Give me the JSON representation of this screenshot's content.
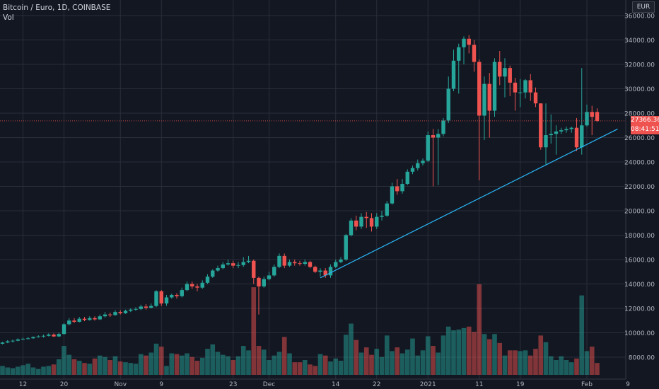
{
  "header": {
    "title": "Bitcoin / Euro, 1D, COINBASE",
    "volume_label": "Vol"
  },
  "price_axis": {
    "currency": "EUR",
    "last_price": "27366.36",
    "countdown": "08:41:51",
    "ticks": [
      "36000.00",
      "34000.00",
      "32000.00",
      "30000.00",
      "28000.00",
      "26000.00",
      "24000.00",
      "22000.00",
      "20000.00",
      "18000.00",
      "16000.00",
      "14000.00",
      "12000.00",
      "10000.00",
      "8000.00"
    ]
  },
  "colors": {
    "up": "#26a69a",
    "down": "#ef5350",
    "trendline": "#29b6f6",
    "grid": "#2a2e39",
    "background": "#131722"
  },
  "chart_data": {
    "type": "candlestick",
    "title": "Bitcoin / Euro, 1D, COINBASE",
    "ylim": [
      7000,
      36500
    ],
    "x_tick_labels": [
      {
        "label": "12",
        "index": 4
      },
      {
        "label": "20",
        "index": 12
      },
      {
        "label": "Nov",
        "index": 23
      },
      {
        "label": "9",
        "index": 31
      },
      {
        "label": "23",
        "index": 45
      },
      {
        "label": "Dec",
        "index": 52
      },
      {
        "label": "14",
        "index": 65
      },
      {
        "label": "22",
        "index": 73
      },
      {
        "label": "2021",
        "index": 83
      },
      {
        "label": "11",
        "index": 93
      },
      {
        "label": "19",
        "index": 101
      },
      {
        "label": "Feb",
        "index": 114
      },
      {
        "label": "9",
        "index": 122
      }
    ],
    "trendline": {
      "start": {
        "index": 62,
        "value": 14500
      },
      "end": {
        "index": 120,
        "value": 26700
      }
    },
    "candles": [
      [
        9100,
        9200,
        9050,
        9250,
        1200
      ],
      [
        9200,
        9300,
        9150,
        9400,
        1000
      ],
      [
        9300,
        9350,
        9200,
        9450,
        900
      ],
      [
        9350,
        9450,
        9300,
        9550,
        1100
      ],
      [
        9450,
        9500,
        9400,
        9600,
        1300
      ],
      [
        9500,
        9550,
        9450,
        9650,
        1500
      ],
      [
        9550,
        9650,
        9500,
        9700,
        1000
      ],
      [
        9650,
        9700,
        9600,
        9800,
        800
      ],
      [
        9700,
        9750,
        9600,
        9850,
        1100
      ],
      [
        9750,
        9850,
        9700,
        9950,
        1200
      ],
      [
        9850,
        9700,
        9650,
        9950,
        1400
      ],
      [
        9700,
        9900,
        9650,
        10000,
        2100
      ],
      [
        9900,
        10700,
        9850,
        10800,
        3900
      ],
      [
        10700,
        11000,
        10600,
        11200,
        2700
      ],
      [
        11000,
        10900,
        10800,
        11200,
        2100
      ],
      [
        10900,
        11150,
        10850,
        11300,
        1900
      ],
      [
        11150,
        11050,
        10950,
        11300,
        1600
      ],
      [
        11050,
        11200,
        11000,
        11350,
        1500
      ],
      [
        11200,
        11100,
        11000,
        11350,
        2200
      ],
      [
        11100,
        11350,
        11050,
        11500,
        2600
      ],
      [
        11350,
        11500,
        11250,
        11700,
        2400
      ],
      [
        11500,
        11450,
        11300,
        11650,
        2000
      ],
      [
        11450,
        11700,
        11400,
        11850,
        2500
      ],
      [
        11700,
        11600,
        11500,
        11850,
        1800
      ],
      [
        11600,
        11800,
        11550,
        11900,
        1700
      ],
      [
        11800,
        11900,
        11700,
        12000,
        1600
      ],
      [
        11900,
        11950,
        11800,
        12100,
        1500
      ],
      [
        11950,
        12150,
        11850,
        12300,
        2800
      ],
      [
        12150,
        12050,
        11900,
        12350,
        2600
      ],
      [
        12050,
        12200,
        12000,
        12400,
        3000
      ],
      [
        12200,
        13400,
        12100,
        13500,
        4200
      ],
      [
        13400,
        12400,
        12200,
        13500,
        3800
      ],
      [
        12400,
        12900,
        12200,
        13100,
        1200
      ],
      [
        12900,
        13100,
        12800,
        13200,
        2900
      ],
      [
        13100,
        13000,
        12800,
        13250,
        2800
      ],
      [
        13000,
        13500,
        12900,
        13700,
        2600
      ],
      [
        13500,
        14000,
        13400,
        14200,
        2900
      ],
      [
        14000,
        13800,
        13600,
        14200,
        2400
      ],
      [
        13800,
        13700,
        13400,
        14000,
        1900
      ],
      [
        13700,
        14100,
        13600,
        14300,
        2300
      ],
      [
        14100,
        14600,
        14000,
        14800,
        3500
      ],
      [
        14600,
        15100,
        14500,
        15200,
        4100
      ],
      [
        15100,
        15300,
        15000,
        15500,
        3100
      ],
      [
        15300,
        15600,
        15200,
        15800,
        2700
      ],
      [
        15600,
        15700,
        15500,
        16000,
        2500
      ],
      [
        15700,
        15500,
        15300,
        15900,
        2000
      ],
      [
        15500,
        15550,
        15300,
        15800,
        2500
      ],
      [
        15550,
        15800,
        15400,
        16200,
        3900
      ],
      [
        15800,
        15900,
        15700,
        16300,
        3300
      ],
      [
        15900,
        14500,
        14000,
        16000,
        11800
      ],
      [
        14500,
        13800,
        11500,
        14600,
        3900
      ],
      [
        13800,
        14400,
        13700,
        14600,
        3400
      ],
      [
        14400,
        14700,
        14300,
        15000,
        2000
      ],
      [
        14700,
        15400,
        14600,
        15600,
        2600
      ],
      [
        15400,
        16300,
        15300,
        16500,
        3100
      ],
      [
        16300,
        15500,
        15300,
        16500,
        5100
      ],
      [
        15500,
        15800,
        15400,
        16000,
        2900
      ],
      [
        15800,
        15700,
        15500,
        16000,
        1700
      ],
      [
        15700,
        15650,
        15500,
        15900,
        1700
      ],
      [
        15650,
        15800,
        15500,
        16000,
        2000
      ],
      [
        15800,
        15400,
        15300,
        15900,
        1400
      ],
      [
        15400,
        15000,
        14900,
        15500,
        1200
      ],
      [
        15000,
        15100,
        14600,
        15300,
        2800
      ],
      [
        15100,
        14700,
        14500,
        15300,
        2600
      ],
      [
        14700,
        15400,
        14500,
        15600,
        1800
      ],
      [
        15400,
        15800,
        15300,
        16000,
        2200
      ],
      [
        15800,
        16000,
        15700,
        16200,
        1900
      ],
      [
        16000,
        18000,
        15900,
        18100,
        5400
      ],
      [
        18000,
        19200,
        17900,
        19400,
        6900
      ],
      [
        19200,
        18700,
        18400,
        19600,
        4700
      ],
      [
        18700,
        19500,
        18500,
        19800,
        3000
      ],
      [
        19500,
        19400,
        18600,
        19900,
        3700
      ],
      [
        19400,
        18700,
        18300,
        19800,
        2700
      ],
      [
        18700,
        19500,
        18500,
        19800,
        3500
      ],
      [
        19500,
        19600,
        19200,
        20000,
        2400
      ],
      [
        19600,
        20600,
        19500,
        20800,
        5300
      ],
      [
        20600,
        22000,
        20500,
        22300,
        3200
      ],
      [
        22000,
        21600,
        21300,
        22600,
        3700
      ],
      [
        21600,
        22200,
        21400,
        22600,
        2900
      ],
      [
        22200,
        23200,
        22100,
        23400,
        3400
      ],
      [
        23200,
        23500,
        23000,
        23700,
        4900
      ],
      [
        23500,
        23900,
        23300,
        24200,
        2600
      ],
      [
        23900,
        24100,
        23700,
        24300,
        3300
      ],
      [
        24100,
        26200,
        24000,
        26500,
        5200
      ],
      [
        26200,
        26000,
        22000,
        26700,
        3900
      ],
      [
        26000,
        26300,
        22100,
        26700,
        3000
      ],
      [
        26300,
        27400,
        26100,
        27600,
        5300
      ],
      [
        27400,
        30000,
        27200,
        31000,
        6500
      ],
      [
        30000,
        32300,
        29800,
        33200,
        6000
      ],
      [
        32300,
        33400,
        29600,
        33700,
        6100
      ],
      [
        33400,
        34100,
        32000,
        34300,
        6300
      ],
      [
        34100,
        33600,
        32900,
        34400,
        6500
      ],
      [
        33600,
        32200,
        31400,
        34000,
        5800
      ],
      [
        32200,
        27800,
        22500,
        32400,
        12200
      ],
      [
        27800,
        30400,
        25800,
        31000,
        5500
      ],
      [
        30400,
        28200,
        26000,
        31300,
        4800
      ],
      [
        28200,
        32200,
        27700,
        32500,
        5500
      ],
      [
        32200,
        31000,
        30300,
        33100,
        4300
      ],
      [
        31000,
        31700,
        29300,
        32500,
        2600
      ],
      [
        31700,
        30500,
        29400,
        31900,
        3300
      ],
      [
        30500,
        29700,
        28200,
        30900,
        3300
      ],
      [
        29700,
        29700,
        28500,
        30800,
        3200
      ],
      [
        29700,
        30700,
        29200,
        30800,
        3300
      ],
      [
        30700,
        29700,
        29000,
        31200,
        2600
      ],
      [
        29700,
        28800,
        28500,
        30100,
        3500
      ],
      [
        28800,
        25200,
        25000,
        28800,
        5300
      ],
      [
        25200,
        26200,
        23800,
        28800,
        4400
      ],
      [
        26200,
        26300,
        25500,
        27900,
        2500
      ],
      [
        26300,
        26500,
        24600,
        27000,
        2000
      ],
      [
        26500,
        26600,
        26300,
        26800,
        2500
      ],
      [
        26600,
        26700,
        26400,
        26900,
        2000
      ],
      [
        26700,
        26800,
        26400,
        26900,
        1700
      ],
      [
        26800,
        25200,
        24900,
        27600,
        2200
      ],
      [
        25200,
        27000,
        24600,
        31700,
        10700
      ],
      [
        27000,
        28100,
        26900,
        28700,
        3200
      ],
      [
        28100,
        27700,
        26200,
        28600,
        3800
      ],
      [
        28100,
        27366,
        27300,
        28400,
        1600
      ]
    ]
  }
}
